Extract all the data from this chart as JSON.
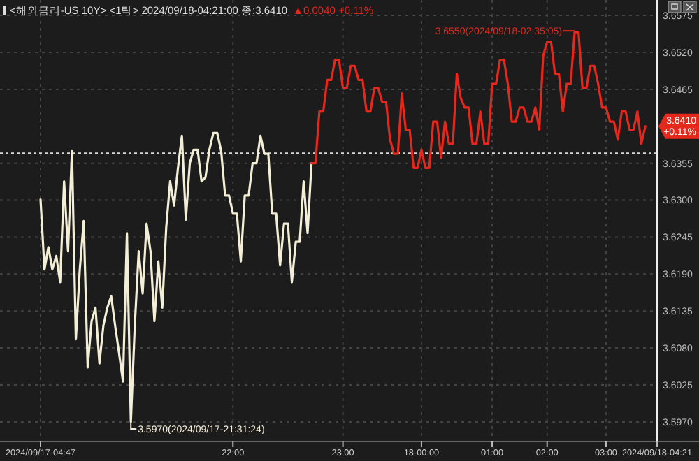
{
  "chart_data": {
    "type": "line",
    "title": "<해외금리-US 10Y> <1틱> 2024/09/18-04:21:00 종:3.6410",
    "subtitle": "▲0.0040 +0.11%",
    "categories": [
      "2024/09/17-04:47",
      null,
      null,
      null,
      null,
      null,
      null,
      null,
      null,
      null,
      null,
      null,
      null,
      null,
      null,
      null,
      null,
      null,
      null,
      null,
      null,
      null,
      null,
      null,
      null,
      null,
      null,
      null,
      null,
      null,
      null,
      null,
      null,
      null,
      null,
      null,
      null,
      null,
      null,
      null,
      null,
      null,
      null,
      null,
      null,
      null,
      null,
      null,
      null,
      "22:00",
      null,
      null,
      null,
      null,
      null,
      null,
      null,
      null,
      null,
      null,
      null,
      null,
      null,
      null,
      null,
      null,
      null,
      null,
      null,
      null,
      null,
      null,
      null,
      null,
      null,
      null,
      null,
      "23:00",
      null,
      null,
      null,
      null,
      null,
      null,
      null,
      null,
      null,
      null,
      null,
      null,
      null,
      null,
      null,
      null,
      null,
      null,
      null,
      "18-00:00",
      null,
      null,
      null,
      null,
      null,
      null,
      null,
      null,
      null,
      null,
      null,
      null,
      null,
      null,
      null,
      null,
      null,
      "01:00",
      null,
      null,
      null,
      null,
      null,
      null,
      null,
      null,
      null,
      null,
      null,
      null,
      null,
      "02:00",
      null,
      null,
      null,
      null,
      null,
      null,
      null,
      null,
      null,
      null,
      null,
      null,
      null,
      null,
      "03:00",
      null,
      null,
      null,
      null,
      null,
      null,
      null,
      null,
      null,
      null,
      null,
      null,
      "2024/09/18-04:21"
    ],
    "ylim": [
      3.5947,
      3.6598
    ],
    "yticks": [
      {
        "value": 3.597,
        "label": "3.5970"
      },
      {
        "value": 3.6025,
        "label": "3.6025"
      },
      {
        "value": 3.608,
        "label": "3.6080"
      },
      {
        "value": 3.6135,
        "label": "3.6135"
      },
      {
        "value": 3.619,
        "label": "3.6190"
      },
      {
        "value": 3.6245,
        "label": "3.6245"
      },
      {
        "value": 3.63,
        "label": "3.6300"
      },
      {
        "value": 3.6355,
        "label": "3.6355"
      },
      {
        "value": 3.6465,
        "label": "3.6465"
      },
      {
        "value": 3.652,
        "label": "3.6520"
      },
      {
        "value": 3.6575,
        "label": "3.6575"
      }
    ],
    "grid": true,
    "line_style": "solid",
    "series": [
      {
        "color": "#f3eed6",
        "values": [
          3.6301,
          3.6197,
          3.623,
          3.6197,
          3.6217,
          3.6178,
          3.6328,
          3.6224,
          3.6373,
          3.6093,
          3.6197,
          3.6269,
          3.6051,
          3.612,
          3.614,
          3.6057,
          3.6113,
          3.614,
          3.6157,
          3.6113,
          3.6072,
          3.603,
          3.6251,
          3.597,
          3.6113,
          3.6224,
          3.6161,
          3.6265,
          3.6224,
          3.612,
          3.6209,
          3.614,
          3.6259,
          3.6328,
          3.6292,
          3.6348,
          3.6396,
          3.6271,
          3.6355,
          3.6375,
          3.6375,
          3.6328,
          3.6334,
          3.6375,
          3.64,
          3.64,
          3.6373,
          3.6307,
          3.6307,
          3.628,
          3.628,
          3.6209,
          3.6307,
          3.6307,
          3.6355,
          3.6355,
          3.6396,
          3.6369,
          3.6369,
          3.628,
          3.628,
          3.6203,
          3.6265,
          3.6265,
          3.6178,
          3.6238,
          3.6238,
          3.6328,
          3.6251,
          3.6355,
          null,
          null,
          null,
          null,
          null,
          null,
          null,
          null,
          null,
          null,
          null,
          null,
          null,
          null,
          null,
          null,
          null,
          null,
          null,
          null,
          null,
          null,
          null,
          null,
          null,
          null,
          null,
          null,
          null,
          null,
          null,
          null,
          null,
          null,
          null,
          null,
          null,
          null,
          null,
          null,
          null,
          null,
          null,
          null,
          null,
          null,
          null,
          null,
          null,
          null,
          null,
          null,
          null,
          null,
          null,
          null,
          null,
          null,
          null,
          null,
          null,
          null,
          null,
          null,
          null,
          null,
          null,
          null,
          null,
          null,
          null,
          null,
          null,
          null,
          null,
          null,
          null,
          null,
          null,
          null,
          null,
          null,
          null,
          null,
          null,
          null,
          null,
          null
        ]
      },
      {
        "color": "#e5281b",
        "values": [
          null,
          null,
          null,
          null,
          null,
          null,
          null,
          null,
          null,
          null,
          null,
          null,
          null,
          null,
          null,
          null,
          null,
          null,
          null,
          null,
          null,
          null,
          null,
          null,
          null,
          null,
          null,
          null,
          null,
          null,
          null,
          null,
          null,
          null,
          null,
          null,
          null,
          null,
          null,
          null,
          null,
          null,
          null,
          null,
          null,
          null,
          null,
          null,
          null,
          null,
          null,
          null,
          null,
          null,
          null,
          null,
          null,
          null,
          null,
          null,
          null,
          null,
          null,
          null,
          null,
          null,
          null,
          null,
          null,
          3.6355,
          3.6355,
          3.6432,
          3.6432,
          3.6479,
          3.6479,
          3.6509,
          3.6509,
          3.6467,
          3.6467,
          3.65,
          3.65,
          3.6479,
          3.6479,
          3.6432,
          3.6432,
          3.6467,
          3.6467,
          3.6446,
          3.6446,
          3.639,
          3.6369,
          3.6369,
          3.6459,
          3.6405,
          3.6405,
          3.6348,
          3.6348,
          3.6375,
          3.6348,
          3.6348,
          3.6417,
          3.6417,
          3.6363,
          3.6417,
          3.6384,
          3.6384,
          3.6488,
          3.6452,
          3.6438,
          3.6438,
          3.6384,
          3.6384,
          3.6432,
          3.6384,
          3.6384,
          3.6473,
          3.6473,
          3.6509,
          3.6509,
          3.6473,
          3.6417,
          3.6417,
          3.6438,
          3.6438,
          3.6417,
          3.6417,
          3.6438,
          3.6405,
          3.6515,
          3.6536,
          3.6536,
          3.6488,
          3.6488,
          3.6432,
          3.6473,
          3.6473,
          3.655,
          3.655,
          3.6467,
          3.6467,
          3.65,
          3.65,
          3.6473,
          3.6438,
          3.6438,
          3.6417,
          3.6417,
          3.639,
          3.6432,
          3.6432,
          3.6405,
          3.6405,
          3.6432,
          3.6384,
          3.641,
          null,
          null,
          null
        ]
      }
    ],
    "ref_lines": [
      {
        "axis": "y",
        "value": 3.637,
        "color": "#d8d8d8",
        "line_style": "dotted"
      }
    ],
    "annotations": [
      "3.5970(2024/09/17-21:31:24)",
      "3.6550(2024/09/18-02:35:05)",
      "3.6410 +0.11%"
    ]
  }
}
